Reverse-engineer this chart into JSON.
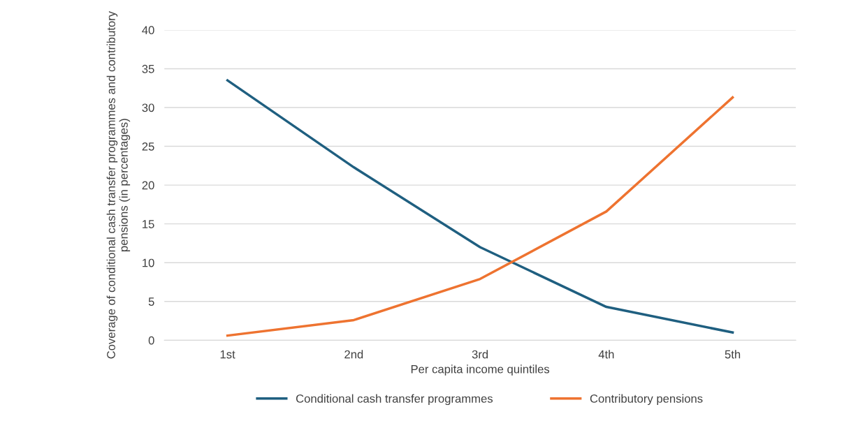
{
  "chart_data": {
    "type": "line",
    "xlabel": "Per capita income quintiles",
    "ylabel": "Coverage of conditional cash transfer programmes and contributory pensions (in percentages)",
    "categories": [
      "1st",
      "2nd",
      "3rd",
      "4th",
      "5th"
    ],
    "series": [
      {
        "name": "Conditional cash transfer programmes",
        "color": "#1f5f80",
        "values": [
          33.5,
          22.3,
          12.0,
          4.3,
          1.0
        ]
      },
      {
        "name": "Contributory pensions",
        "color": "#ee7330",
        "values": [
          0.6,
          2.6,
          7.9,
          16.6,
          31.3
        ]
      }
    ],
    "ylim": [
      0,
      40
    ],
    "yticks": [
      0,
      5,
      10,
      15,
      20,
      25,
      30,
      35,
      40
    ],
    "grid": "y",
    "legend": "bottom",
    "marker": "none",
    "line_style": "solid"
  }
}
